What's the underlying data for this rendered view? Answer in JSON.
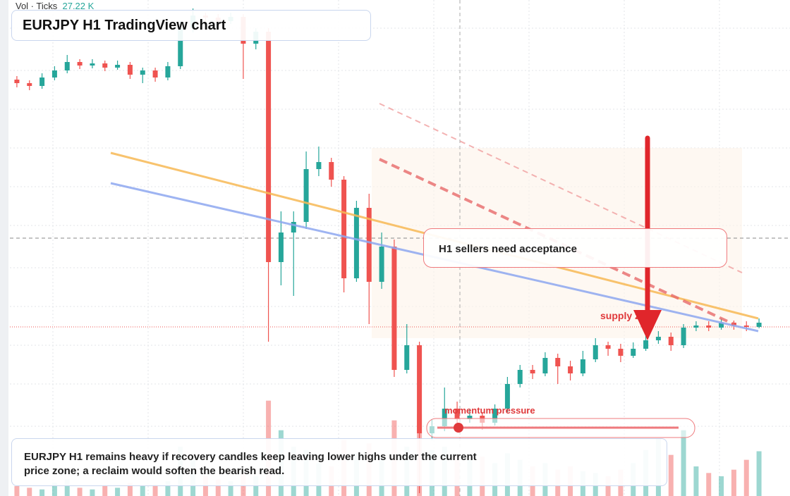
{
  "header": {
    "volume_label": "Vol · Ticks",
    "volume_value": "27.22 K"
  },
  "title": "EURJPY H1 TradingView chart",
  "chart": {
    "type": "candlestick",
    "open": [
      162.955,
      162.93,
      162.91,
      162.97,
      163.02,
      163.08,
      163.055,
      163.07,
      163.04,
      163.06,
      162.99,
      163.02,
      162.97,
      163.05,
      163.32,
      163.41,
      163.395,
      163.37,
      163.4,
      163.21,
      163.295,
      161.66,
      161.87,
      161.945,
      162.32,
      162.37,
      162.245,
      161.545,
      162.045,
      161.52,
      161.77,
      160.895,
      161.07,
      160.445,
      160.495,
      160.62,
      160.545,
      160.57,
      160.52,
      160.62,
      160.795,
      160.895,
      160.87,
      160.98,
      160.92,
      160.87,
      160.97,
      161.07,
      161.045,
      160.995,
      161.045,
      161.105,
      161.13,
      161.07,
      161.195,
      161.21,
      161.195,
      161.23,
      161.21,
      161.2
    ],
    "high": [
      162.98,
      162.95,
      163.0,
      163.05,
      163.13,
      163.1,
      163.1,
      163.09,
      163.09,
      163.08,
      163.04,
      163.04,
      163.08,
      163.37,
      163.46,
      163.43,
      163.42,
      163.43,
      163.42,
      163.32,
      163.32,
      162.02,
      162.02,
      162.445,
      162.48,
      162.4,
      162.27,
      162.095,
      162.145,
      161.87,
      161.82,
      161.22,
      161.095,
      160.545,
      160.77,
      160.67,
      160.62,
      160.595,
      160.65,
      160.845,
      160.93,
      160.93,
      161.02,
      161.01,
      160.96,
      161.03,
      161.12,
      161.095,
      161.08,
      161.09,
      161.16,
      161.17,
      161.16,
      161.22,
      161.24,
      161.24,
      161.26,
      161.245,
      161.24,
      161.26
    ],
    "low": [
      162.9,
      162.88,
      162.89,
      162.95,
      163.0,
      163.03,
      163.035,
      163.015,
      163.025,
      162.96,
      162.93,
      162.94,
      162.95,
      163.03,
      163.29,
      163.37,
      163.34,
      163.35,
      162.96,
      163.17,
      161.095,
      161.495,
      161.42,
      161.895,
      162.27,
      162.195,
      161.445,
      161.52,
      161.22,
      161.47,
      160.845,
      160.87,
      160.02,
      160.395,
      160.46,
      160.495,
      160.52,
      160.47,
      160.5,
      160.595,
      160.77,
      160.83,
      160.85,
      160.795,
      160.82,
      160.85,
      160.95,
      160.995,
      160.95,
      160.98,
      161.03,
      161.08,
      161.03,
      161.05,
      161.17,
      161.17,
      161.18,
      161.18,
      161.17,
      161.19
    ],
    "close": [
      162.93,
      162.91,
      162.97,
      163.02,
      163.08,
      163.055,
      163.07,
      163.04,
      163.06,
      162.99,
      163.02,
      162.97,
      163.05,
      163.32,
      163.41,
      163.395,
      163.37,
      163.4,
      163.21,
      163.295,
      161.66,
      161.87,
      161.945,
      162.32,
      162.37,
      162.245,
      161.545,
      162.045,
      161.52,
      161.77,
      160.895,
      161.07,
      160.445,
      160.495,
      160.62,
      160.545,
      160.57,
      160.52,
      160.62,
      160.795,
      160.895,
      160.87,
      160.98,
      160.92,
      160.87,
      160.97,
      161.07,
      161.045,
      160.995,
      161.045,
      161.105,
      161.13,
      161.07,
      161.195,
      161.21,
      161.195,
      161.23,
      161.21,
      161.2,
      161.23
    ],
    "ylim": [
      160,
      163.52
    ],
    "volume": [
      6,
      5,
      4,
      8,
      10,
      5,
      4,
      6,
      5,
      8,
      6,
      7,
      9,
      30,
      22,
      12,
      10,
      9,
      14,
      12,
      58,
      40,
      30,
      28,
      20,
      18,
      34,
      26,
      32,
      22,
      46,
      30,
      50,
      28,
      30,
      25,
      22,
      24,
      20,
      26,
      22,
      18,
      20,
      16,
      18,
      15,
      14,
      12,
      16,
      20,
      28,
      35,
      25,
      40,
      18,
      14,
      12,
      16,
      22,
      27.22
    ],
    "volume_lim": [
      0,
      60
    ],
    "up_color": "#26a69a",
    "down_color": "#ef5350"
  },
  "annotations": {
    "callout": "H1 sellers need acceptance",
    "zone_label": "supply zone",
    "meter_label": "momentum pressure"
  },
  "note": "EURJPY H1 remains heavy if recovery candles keep leaving lower highs under the current price zone; a reclaim would soften the bearish read."
}
